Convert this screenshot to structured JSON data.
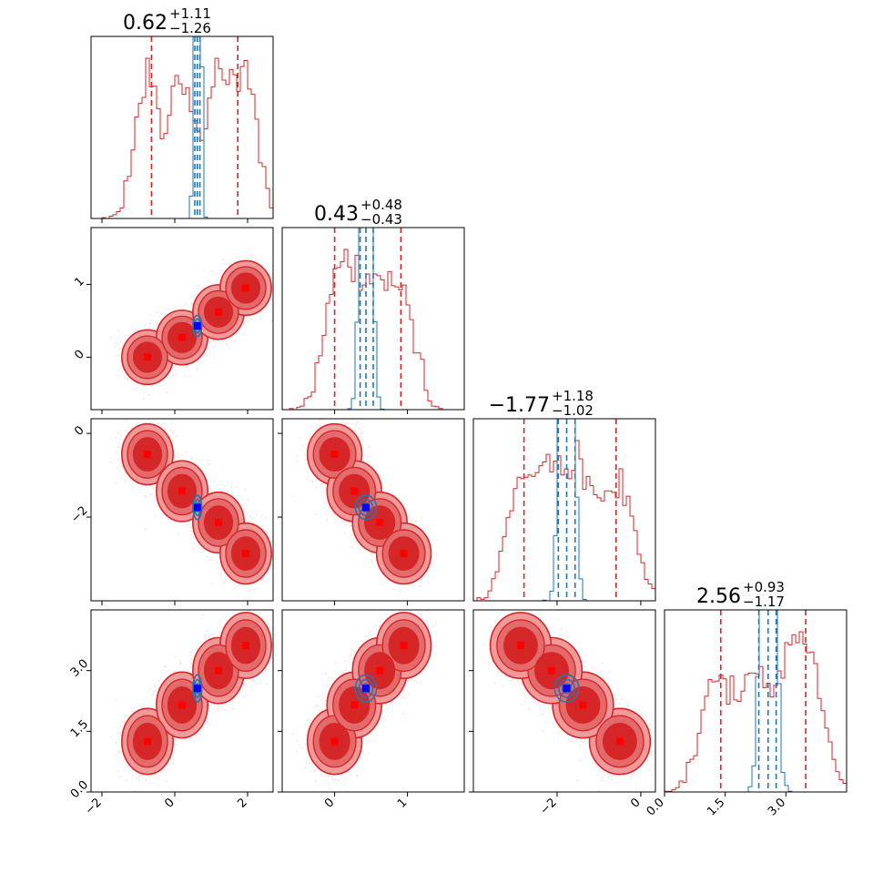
{
  "colors": {
    "red": "#d62728",
    "red_mid": "#e9898a",
    "red_light": "#f6c9ca",
    "blue_line": "#1f77b4",
    "blue_marker": "#0000ff",
    "red_marker": "#ff0000"
  },
  "chart_data": {
    "type": "corner",
    "parameters": [
      {
        "id": "p0",
        "title_main": "0.62",
        "title_up": "+1.11",
        "title_down": "−1.26",
        "range": [
          -2.3,
          2.7
        ],
        "ticks": [
          {
            "v": -2,
            "label": "−2"
          },
          {
            "v": 0,
            "label": "0"
          },
          {
            "v": 2,
            "label": "2"
          }
        ]
      },
      {
        "id": "p1",
        "title_main": "0.43",
        "title_up": "+0.48",
        "title_down": "−0.43",
        "range": [
          -0.72,
          1.78
        ],
        "ticks": [
          {
            "v": 0,
            "label": "0"
          },
          {
            "v": 1,
            "label": "1"
          }
        ]
      },
      {
        "id": "p2",
        "title_main": "−1.77",
        "title_up": "+1.18",
        "title_down": "−1.02",
        "range": [
          -4.0,
          0.35
        ],
        "ticks": [
          {
            "v": -2,
            "label": "−2"
          },
          {
            "v": 0,
            "label": "0"
          }
        ]
      },
      {
        "id": "p3",
        "title_main": "2.56",
        "title_up": "+0.93",
        "title_down": "−1.17",
        "range": [
          0.0,
          4.5
        ],
        "ticks": [
          {
            "v": 0.0,
            "label": "0.0"
          },
          {
            "v": 1.5,
            "label": "1.5"
          },
          {
            "v": 3.0,
            "label": "3.0"
          }
        ]
      }
    ],
    "broad_samples": {
      "cluster_means": [
        [
          -0.75,
          0.0,
          -0.5,
          1.25
        ],
        [
          0.2,
          0.27,
          -1.38,
          2.15
        ],
        [
          1.2,
          0.62,
          -2.13,
          3.0
        ],
        [
          1.95,
          0.95,
          -2.87,
          3.62
        ]
      ],
      "quantile_lines": [
        [
          -0.64,
          1.73
        ],
        [
          0.0,
          0.91
        ],
        [
          -2.79,
          -0.59
        ],
        [
          1.39,
          3.49
        ]
      ]
    },
    "narrow_samples": {
      "mean": [
        0.62,
        0.43,
        -1.77,
        2.56
      ],
      "quantile_lines": [
        [
          0.55,
          0.69
        ],
        [
          0.35,
          0.53
        ],
        [
          -1.97,
          -1.57
        ],
        [
          2.33,
          2.76
        ]
      ]
    },
    "markers": {
      "red_squares": [
        [
          -0.75,
          0.0,
          -0.5,
          1.25
        ],
        [
          0.2,
          0.27,
          -1.38,
          2.15
        ],
        [
          1.2,
          0.62,
          -2.13,
          3.0
        ],
        [
          1.95,
          0.95,
          -2.87,
          3.62
        ]
      ],
      "blue_square": [
        0.62,
        0.43,
        -1.77,
        2.56
      ]
    }
  }
}
